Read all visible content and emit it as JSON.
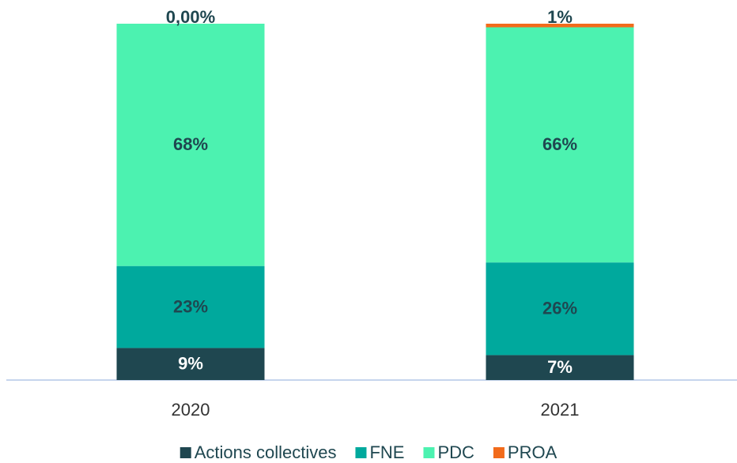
{
  "chart_data": {
    "type": "stacked_bar",
    "categories": [
      "2020",
      "2021"
    ],
    "series": [
      {
        "name": "Actions collectives",
        "color": "#1f4750",
        "values": [
          9,
          7
        ],
        "value_labels": [
          "9%",
          "7%"
        ]
      },
      {
        "name": "FNE",
        "color": "#00a99d",
        "values": [
          23,
          26
        ],
        "value_labels": [
          "23%",
          "26%"
        ]
      },
      {
        "name": "PDC",
        "color": "#4cf2b0",
        "values": [
          68,
          66
        ],
        "value_labels": [
          "68%",
          "66%"
        ]
      },
      {
        "name": "PROA",
        "color": "#f26b1b",
        "values": [
          0,
          1
        ],
        "value_labels": [
          "0,00%",
          "1%"
        ]
      }
    ],
    "ylim": [
      0,
      100
    ],
    "legend": "bottom"
  }
}
